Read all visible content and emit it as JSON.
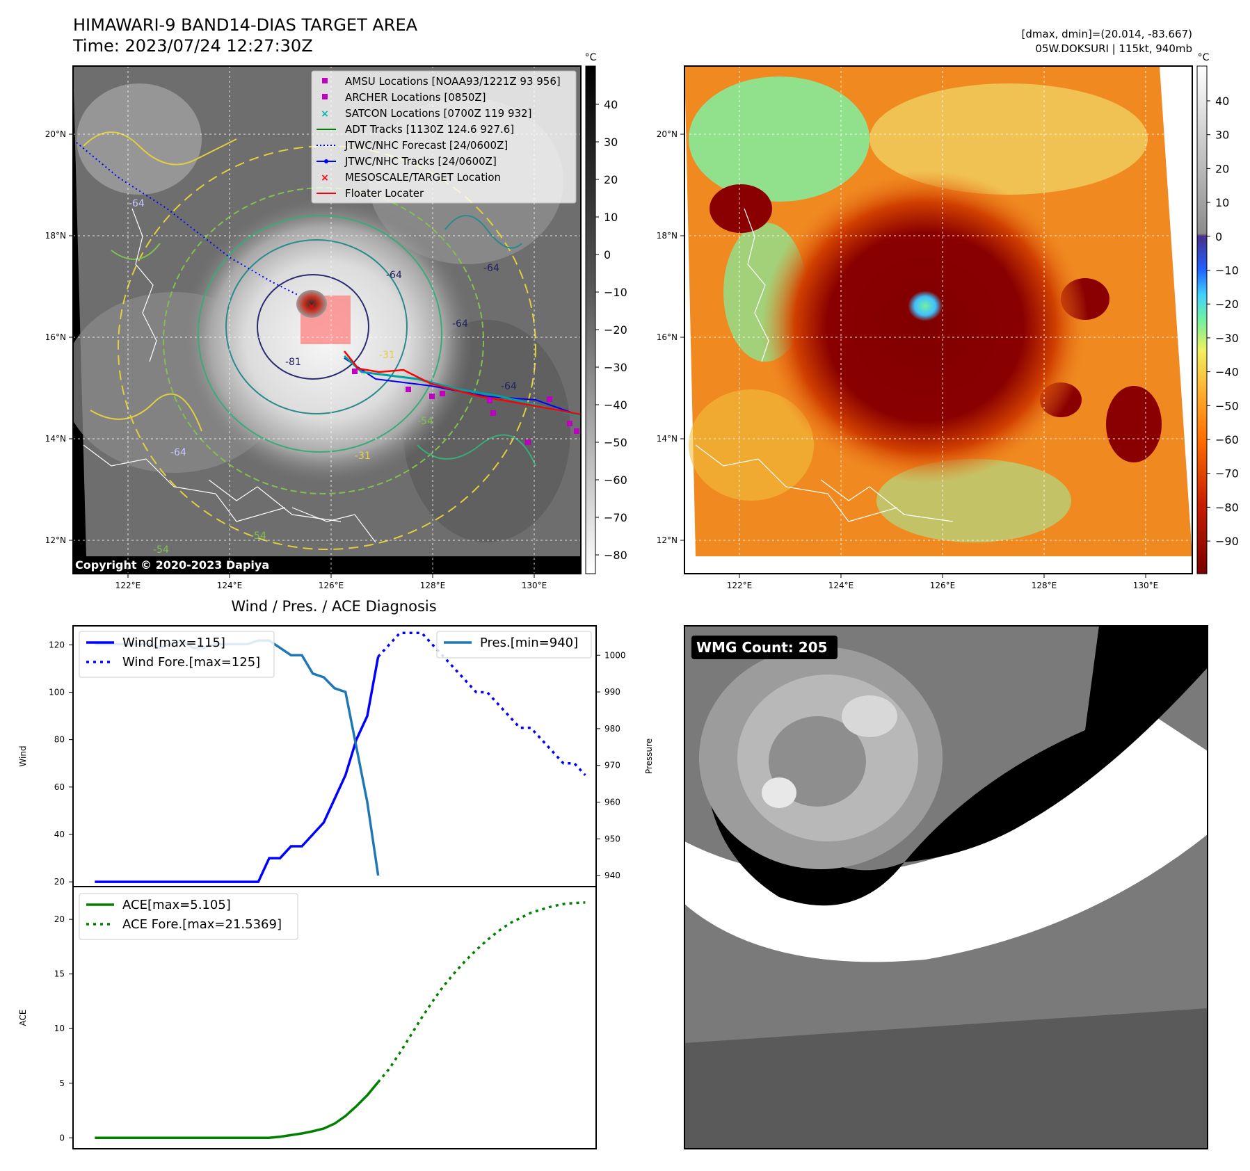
{
  "header": {
    "title": "HIMAWARI-9 BAND14-DIAS TARGET AREA",
    "time": "Time: 2023/07/24 12:27:30Z",
    "dmax_dmin": "[dmax, dmin]=(20.014, -83.667)",
    "storm": "05W.DOKSURI | 115kt, 940mb"
  },
  "copyright": "Copyright © 2020-2023 Dapiya",
  "map_axes": {
    "lon_labels": [
      "122°E",
      "124°E",
      "126°E",
      "128°E",
      "130°E"
    ],
    "lat_labels": [
      "20°N",
      "18°N",
      "16°N",
      "14°N",
      "12°N"
    ]
  },
  "colorbar_left": {
    "unit": "°C",
    "ticks": [
      "40",
      "30",
      "20",
      "10",
      "0",
      "−10",
      "−20",
      "−30",
      "−40",
      "−50",
      "−60",
      "−70",
      "−80"
    ]
  },
  "colorbar_right": {
    "unit": "°C",
    "ticks": [
      "40",
      "30",
      "20",
      "10",
      "0",
      "−10",
      "−20",
      "−30",
      "−40",
      "−50",
      "−60",
      "−70",
      "−80",
      "−90"
    ]
  },
  "legend": [
    {
      "label": "AMSU Locations [NOAA93/1221Z 93 956]",
      "marker": "square",
      "color": "#c000c0"
    },
    {
      "label": "ARCHER Locations [0850Z]",
      "marker": "square",
      "color": "#c000c0"
    },
    {
      "label": "SATCON Locations [0700Z 119 932]",
      "marker": "x",
      "color": "#00b0b0"
    },
    {
      "label": "ADT Tracks [1130Z 124.6 927.6]",
      "marker": "line",
      "color": "#008000"
    },
    {
      "label": "JTWC/NHC Forecast [24/0600Z]",
      "marker": "dotted",
      "color": "#0000ff"
    },
    {
      "label": "JTWC/NHC Tracks [24/0600Z]",
      "marker": "line-dot",
      "color": "#0000ff"
    },
    {
      "label": "MESOSCALE/TARGET Location",
      "marker": "x",
      "color": "#ff0000"
    },
    {
      "label": "Floater Locater",
      "marker": "line",
      "color": "#ff0000"
    }
  ],
  "contour_labels": [
    "-64",
    "-81",
    "-64",
    "-64",
    "-31",
    "-64",
    "-54",
    "-54",
    "-64",
    "-54",
    "-31",
    "-64"
  ],
  "diagnosis_title": "Wind / Pres. / ACE Diagnosis",
  "wmg_label": "WMG Count: 205",
  "chart_data": [
    {
      "type": "line",
      "title": "Wind / Pres. / ACE Diagnosis",
      "ylabel": "Wind",
      "y2label": "Pressure",
      "ylim": [
        18,
        128
      ],
      "y2lim": [
        937,
        1008
      ],
      "xlim": [
        0,
        48
      ],
      "yticks": [
        20,
        40,
        60,
        80,
        100,
        120
      ],
      "y2ticks": [
        940,
        950,
        960,
        970,
        980,
        990,
        1000
      ],
      "series": [
        {
          "name": "Wind[max=115]",
          "axis": "left",
          "style": "solid",
          "color": "#0000ff",
          "x": [
            2,
            17,
            18,
            19,
            20,
            21,
            22,
            23,
            24,
            25,
            26,
            27,
            28
          ],
          "y": [
            20,
            20,
            30,
            30,
            35,
            35,
            40,
            45,
            55,
            65,
            80,
            90,
            115
          ]
        },
        {
          "name": "Wind Fore.[max=125]",
          "axis": "left",
          "style": "dotted",
          "color": "#0000ff",
          "x": [
            28,
            29,
            30,
            31,
            32,
            33,
            34,
            35,
            36,
            37,
            38,
            39,
            40,
            41,
            42,
            43,
            44,
            45,
            46,
            47
          ],
          "y": [
            115,
            120,
            125,
            125,
            125,
            120,
            115,
            110,
            105,
            100,
            100,
            95,
            90,
            85,
            85,
            80,
            75,
            70,
            70,
            65
          ]
        },
        {
          "name": "Pres.[min=940]",
          "axis": "right",
          "style": "solid",
          "color": "#1f77b4",
          "x": [
            2,
            4,
            6,
            7,
            8,
            9,
            10,
            11,
            12,
            13,
            14,
            15,
            16,
            17,
            18,
            19,
            20,
            21,
            22,
            23,
            24,
            25,
            26,
            27,
            28
          ],
          "y": [
            1003,
            1003,
            1003,
            1003,
            1002,
            1003,
            1004,
            1002,
            1002,
            1003,
            1003,
            1003,
            1003,
            1004,
            1004,
            1002,
            1000,
            1000,
            995,
            994,
            991,
            990,
            975,
            960,
            940
          ]
        }
      ]
    },
    {
      "type": "line",
      "ylabel": "ACE",
      "ylim": [
        -1,
        23
      ],
      "xlim": [
        0,
        48
      ],
      "yticks": [
        0,
        5,
        10,
        15,
        20
      ],
      "series": [
        {
          "name": "ACE[max=5.105]",
          "style": "solid",
          "color": "#008000",
          "x": [
            2,
            4,
            6,
            8,
            10,
            12,
            14,
            16,
            18,
            19,
            20,
            21,
            22,
            23,
            24,
            25,
            26,
            27,
            28
          ],
          "y": [
            0,
            0,
            0,
            0,
            0,
            0,
            0,
            0,
            0,
            0.1,
            0.25,
            0.4,
            0.6,
            0.85,
            1.3,
            2.0,
            2.9,
            3.9,
            5.1
          ]
        },
        {
          "name": "ACE Fore.[max=21.5369]",
          "style": "dotted",
          "color": "#008000",
          "x": [
            28,
            29,
            30,
            31,
            32,
            33,
            34,
            35,
            36,
            37,
            38,
            39,
            40,
            41,
            42,
            43,
            44,
            45,
            46,
            47
          ],
          "y": [
            5.1,
            6.3,
            7.8,
            9.4,
            11.0,
            12.5,
            13.9,
            15.1,
            16.2,
            17.2,
            18.1,
            18.9,
            19.6,
            20.1,
            20.6,
            20.9,
            21.2,
            21.4,
            21.5,
            21.54
          ]
        }
      ]
    }
  ]
}
